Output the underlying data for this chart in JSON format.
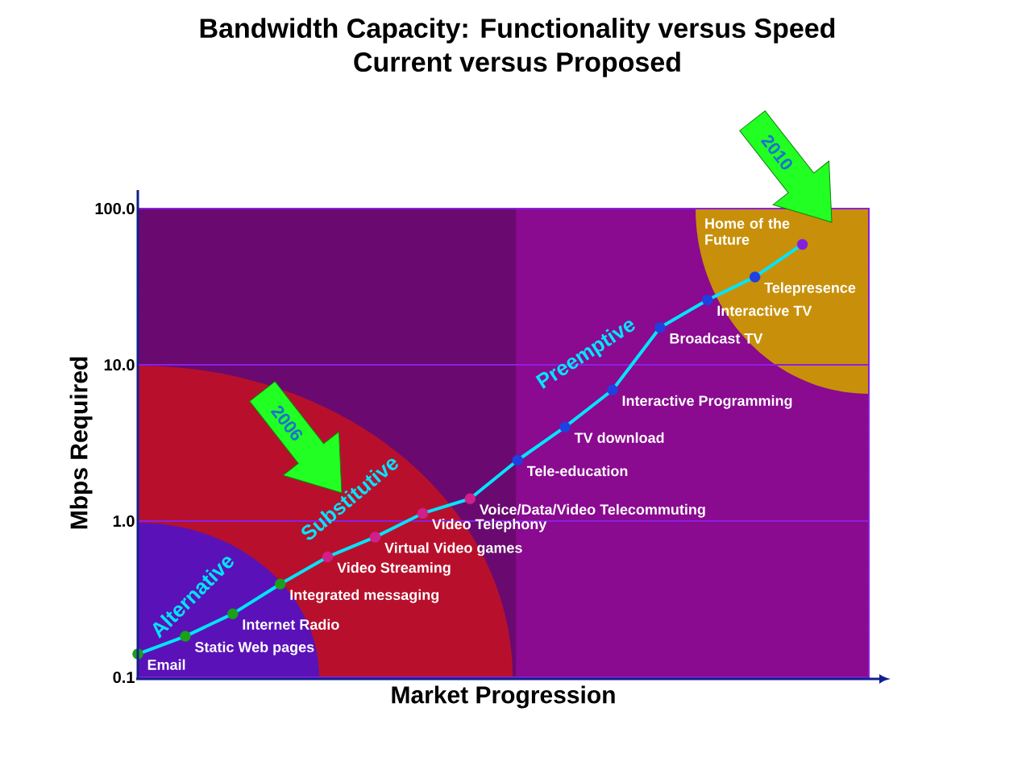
{
  "chart_data": {
    "type": "line",
    "title": "Bandwidth Capacity: Functionality versus Speed",
    "subtitle": "Current versus Proposed",
    "xlabel": "Market Progression",
    "ylabel": "Mbps Required",
    "categories": [
      null,
      null,
      null,
      null,
      null,
      null,
      null,
      null,
      null,
      null,
      null,
      null,
      null,
      null,
      null
    ],
    "series": [
      {
        "color": "#00e5ff",
        "values": [
          0.141,
          0.183,
          0.255,
          0.395,
          0.59,
          0.79,
          1.12,
          1.39,
          2.45,
          4.0,
          6.9,
          17.3,
          26,
          36.5,
          59
        ],
        "colors": [
          "#1aa01a",
          "#1aa01a",
          "#1aa01a",
          "#1aa01a",
          "#d0208a",
          "#d0208a",
          "#d0208a",
          "#d0208a",
          "#2040e0",
          "#2040e0",
          "#2040e0",
          "#2040e0",
          "#2040e0",
          "#2040e0",
          "#8020e0"
        ]
      }
    ],
    "log": "y",
    "ylim": [
      0.1,
      100
    ],
    "yticks": [
      0.1,
      {
        "value": 1,
        "label": "1.0"
      },
      {
        "value": 10,
        "label": "10.0"
      },
      {
        "value": 100,
        "label": "100.0"
      }
    ],
    "grid": "y",
    "marker": "circle",
    "line_style": "solid",
    "tick_labels": "y",
    "annotations": [
      "Email",
      "Static Web pages",
      "Internet Radio",
      "Integrated messaging",
      "Video Streaming",
      "Virtual Video games",
      "Video Telephony",
      "Voice/Data/Video Telecommuting",
      "Tele-education",
      "TV download",
      "Interactive Programming",
      "Broadcast TV",
      "Interactive TV",
      "Telepresence",
      "Home of the Future",
      "Alternative",
      "Substitutive",
      "Preemptive",
      "2006",
      "2010"
    ]
  }
}
